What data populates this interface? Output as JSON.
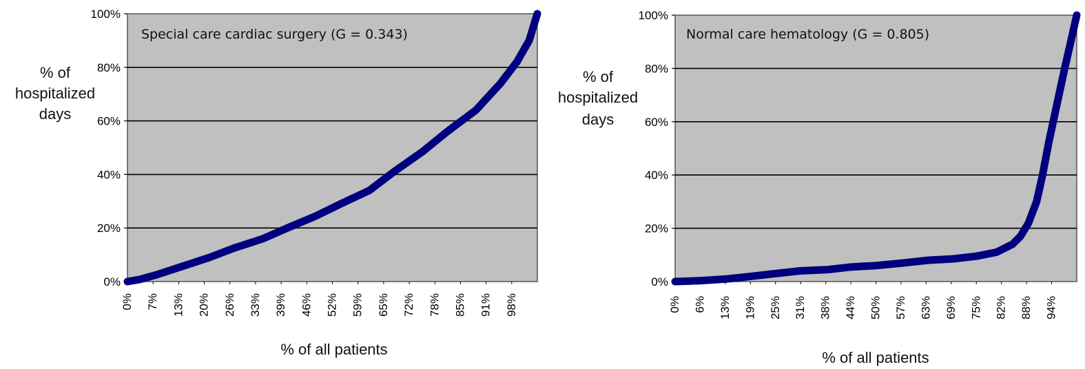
{
  "chart_data": [
    {
      "type": "line",
      "title": "",
      "annotation": "Special care cardiac surgery (G = 0.343)",
      "xlabel": "% of all patients",
      "ylabel_lines": [
        "% of",
        "hospitalized",
        "days"
      ],
      "ylim": [
        0,
        100
      ],
      "xlim": [
        0,
        100
      ],
      "grid": true,
      "legend": "none",
      "line_color": "#00007f",
      "plot_bg": "#c0c0c0",
      "yticks": [
        "0%",
        "20%",
        "40%",
        "60%",
        "80%",
        "100%"
      ],
      "xticks": [
        "0%",
        "7%",
        "13%",
        "20%",
        "26%",
        "33%",
        "39%",
        "46%",
        "52%",
        "59%",
        "65%",
        "72%",
        "78%",
        "85%",
        "91%",
        "98%"
      ],
      "x": [
        0,
        3,
        7,
        13,
        20,
        26,
        33,
        39,
        46,
        52,
        59,
        65,
        72,
        78,
        85,
        91,
        95,
        98,
        100
      ],
      "y": [
        0,
        0.8,
        2.5,
        5.5,
        9,
        12.5,
        16,
        20,
        24.5,
        29,
        34,
        41,
        48.5,
        56,
        64,
        74,
        82,
        90,
        100
      ]
    },
    {
      "type": "line",
      "title": "",
      "annotation": "Normal care hematology (G = 0.805)",
      "xlabel": "% of all patients",
      "ylabel_lines": [
        "% of",
        "hospitalized",
        "days"
      ],
      "ylim": [
        0,
        100
      ],
      "xlim": [
        0,
        100
      ],
      "grid": true,
      "legend": "none",
      "line_color": "#00007f",
      "plot_bg": "#c0c0c0",
      "yticks": [
        "0%",
        "20%",
        "40%",
        "60%",
        "80%",
        "100%"
      ],
      "xticks": [
        "0%",
        "6%",
        "13%",
        "19%",
        "25%",
        "31%",
        "38%",
        "44%",
        "50%",
        "57%",
        "63%",
        "69%",
        "75%",
        "82%",
        "88%",
        "94%"
      ],
      "x": [
        0,
        6,
        13,
        19,
        25,
        31,
        38,
        44,
        50,
        57,
        63,
        69,
        75,
        80,
        84,
        86,
        88,
        90,
        91.5,
        93,
        95,
        97,
        98.5,
        100
      ],
      "y": [
        0,
        0.3,
        1,
        2,
        3,
        4,
        4.5,
        5.5,
        6,
        7,
        8,
        8.5,
        9.5,
        11,
        14,
        17,
        22,
        30,
        40,
        52,
        66,
        80,
        90,
        100
      ]
    }
  ]
}
